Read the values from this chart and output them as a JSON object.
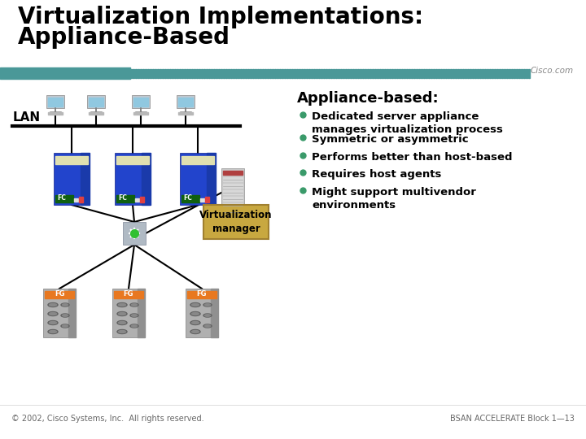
{
  "title_line1": "Virtualization Implementations:",
  "title_line2": "Appliance-Based",
  "title_color": "#000000",
  "title_fontsize": 20,
  "bg_color": "#ffffff",
  "header_bar_teal": "#4a9898",
  "header_bar_light": "#c8e8e8",
  "cisco_text": "Cisco.com",
  "section_title": "Appliance-based:",
  "bullet_color": "#3a9a6a",
  "bullet_points": [
    "Dedicated server appliance\nmanages virtualization process",
    "Symmetric or asymmetric",
    "Performs better than host-based",
    "Requires host agents",
    "Might support multivendor\nenvironments"
  ],
  "lan_label": "LAN",
  "virt_manager_label": "Virtualization\nmanager",
  "footer_left": "© 2002, Cisco Systems, Inc.  All rights reserved.",
  "footer_right": "BSAN ACCELERATE Block 1—13",
  "footer_color": "#666666",
  "fc_label": "FC",
  "fg_label": "FG",
  "switch_color": "#b0bac4",
  "server_blue": "#2244cc",
  "server_blue2": "#1a3aaa",
  "storage_gray": "#b0b0b0",
  "storage_dark": "#909090",
  "vm_box_color": "#c8a840",
  "vm_box_edge": "#a08030",
  "line_color": "#000000",
  "computer_gray": "#c0c8d0",
  "computer_screen": "#90c8e0",
  "server_top_cream": "#e0e0b0",
  "server_fc_green": "#106010",
  "server_fc_text": "#ffffff",
  "appliance_gray": "#c8c8c8",
  "appliance_stripe": "#d8d8d8"
}
